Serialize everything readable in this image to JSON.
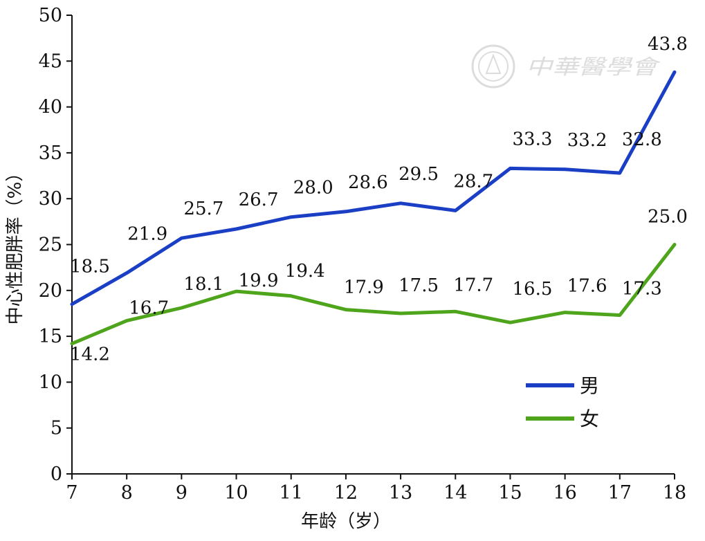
{
  "chart_data": {
    "type": "line",
    "x": [
      7,
      8,
      9,
      10,
      11,
      12,
      13,
      14,
      15,
      16,
      17,
      18
    ],
    "xlabel": "年龄（岁）",
    "ylabel": "中心性肥胖率（%）",
    "ylim": [
      0,
      50
    ],
    "yticks": [
      0,
      5,
      10,
      15,
      20,
      25,
      30,
      35,
      40,
      45,
      50
    ],
    "grid": false,
    "legend_position": "bottom-right",
    "series": [
      {
        "name": "男",
        "color": "#1a3fc4",
        "values": [
          18.5,
          21.9,
          25.7,
          26.7,
          28.0,
          28.6,
          29.5,
          28.7,
          33.3,
          33.2,
          32.8,
          43.8
        ],
        "labels": [
          "18.5",
          "21.9",
          "25.7",
          "26.7",
          "28.0",
          "28.6",
          "29.5",
          "28.7",
          "33.3",
          "33.2",
          "32.8",
          "43.8"
        ]
      },
      {
        "name": "女",
        "color": "#4ea51c",
        "values": [
          14.2,
          16.7,
          18.1,
          19.9,
          19.4,
          17.9,
          17.5,
          17.7,
          16.5,
          17.6,
          17.3,
          25.0
        ],
        "labels": [
          "14.2",
          "16.7",
          "18.1",
          "19.9",
          "19.4",
          "17.9",
          "17.5",
          "17.7",
          "16.5",
          "17.6",
          "17.3",
          "25.0"
        ]
      }
    ]
  },
  "watermark": {
    "text": "中華醫學會",
    "icon": "society-seal-icon"
  }
}
